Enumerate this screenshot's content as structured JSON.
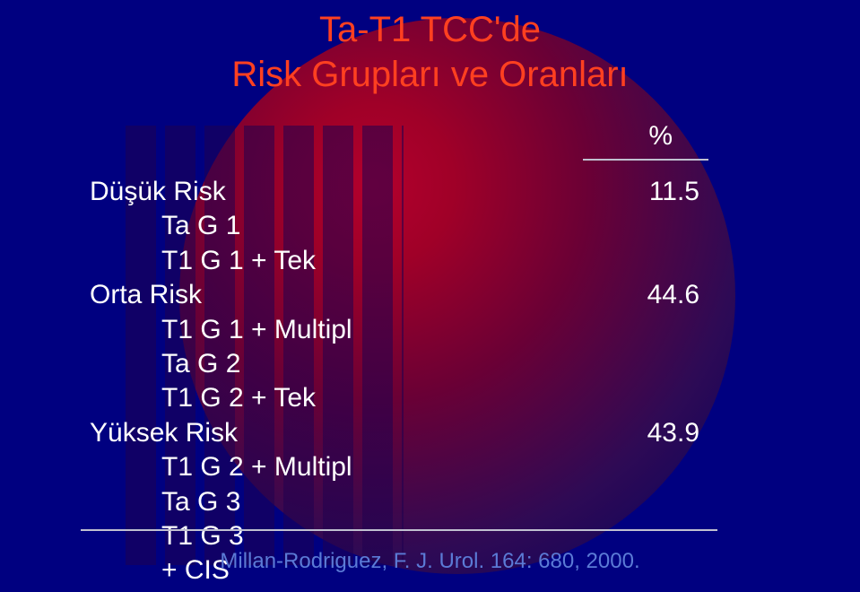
{
  "title_line1": "Ta-T1 TCC'de",
  "title_line2": "Risk Grupları ve Oranları",
  "percent_header": "%",
  "rows": {
    "r0_label": "Düşük Risk",
    "r0_val": "11.5",
    "r1_label": "Ta G 1",
    "r2_label": "T1 G 1 + Tek",
    "r3_label": "Orta Risk",
    "r3_val": "44.6",
    "r4_label": "T1 G 1 + Multipl",
    "r5_label": "Ta G 2",
    "r6_label": "T1 G 2 + Tek",
    "r7_label": "Yüksek Risk",
    "r7_val": "43.9",
    "r8_label": "T1 G 2 + Multipl",
    "r9_label": "Ta G 3",
    "r10_label": "T1 G 3",
    "r11_label": "+ CIS"
  },
  "citation": "Millan-Rodriguez, F. J. Urol. 164: 680, 2000.",
  "colors": {
    "background": "#000080",
    "title": "#ff4020",
    "text": "#ffffff",
    "citation": "#5b7bd6",
    "rule": "#c0c0d0"
  }
}
